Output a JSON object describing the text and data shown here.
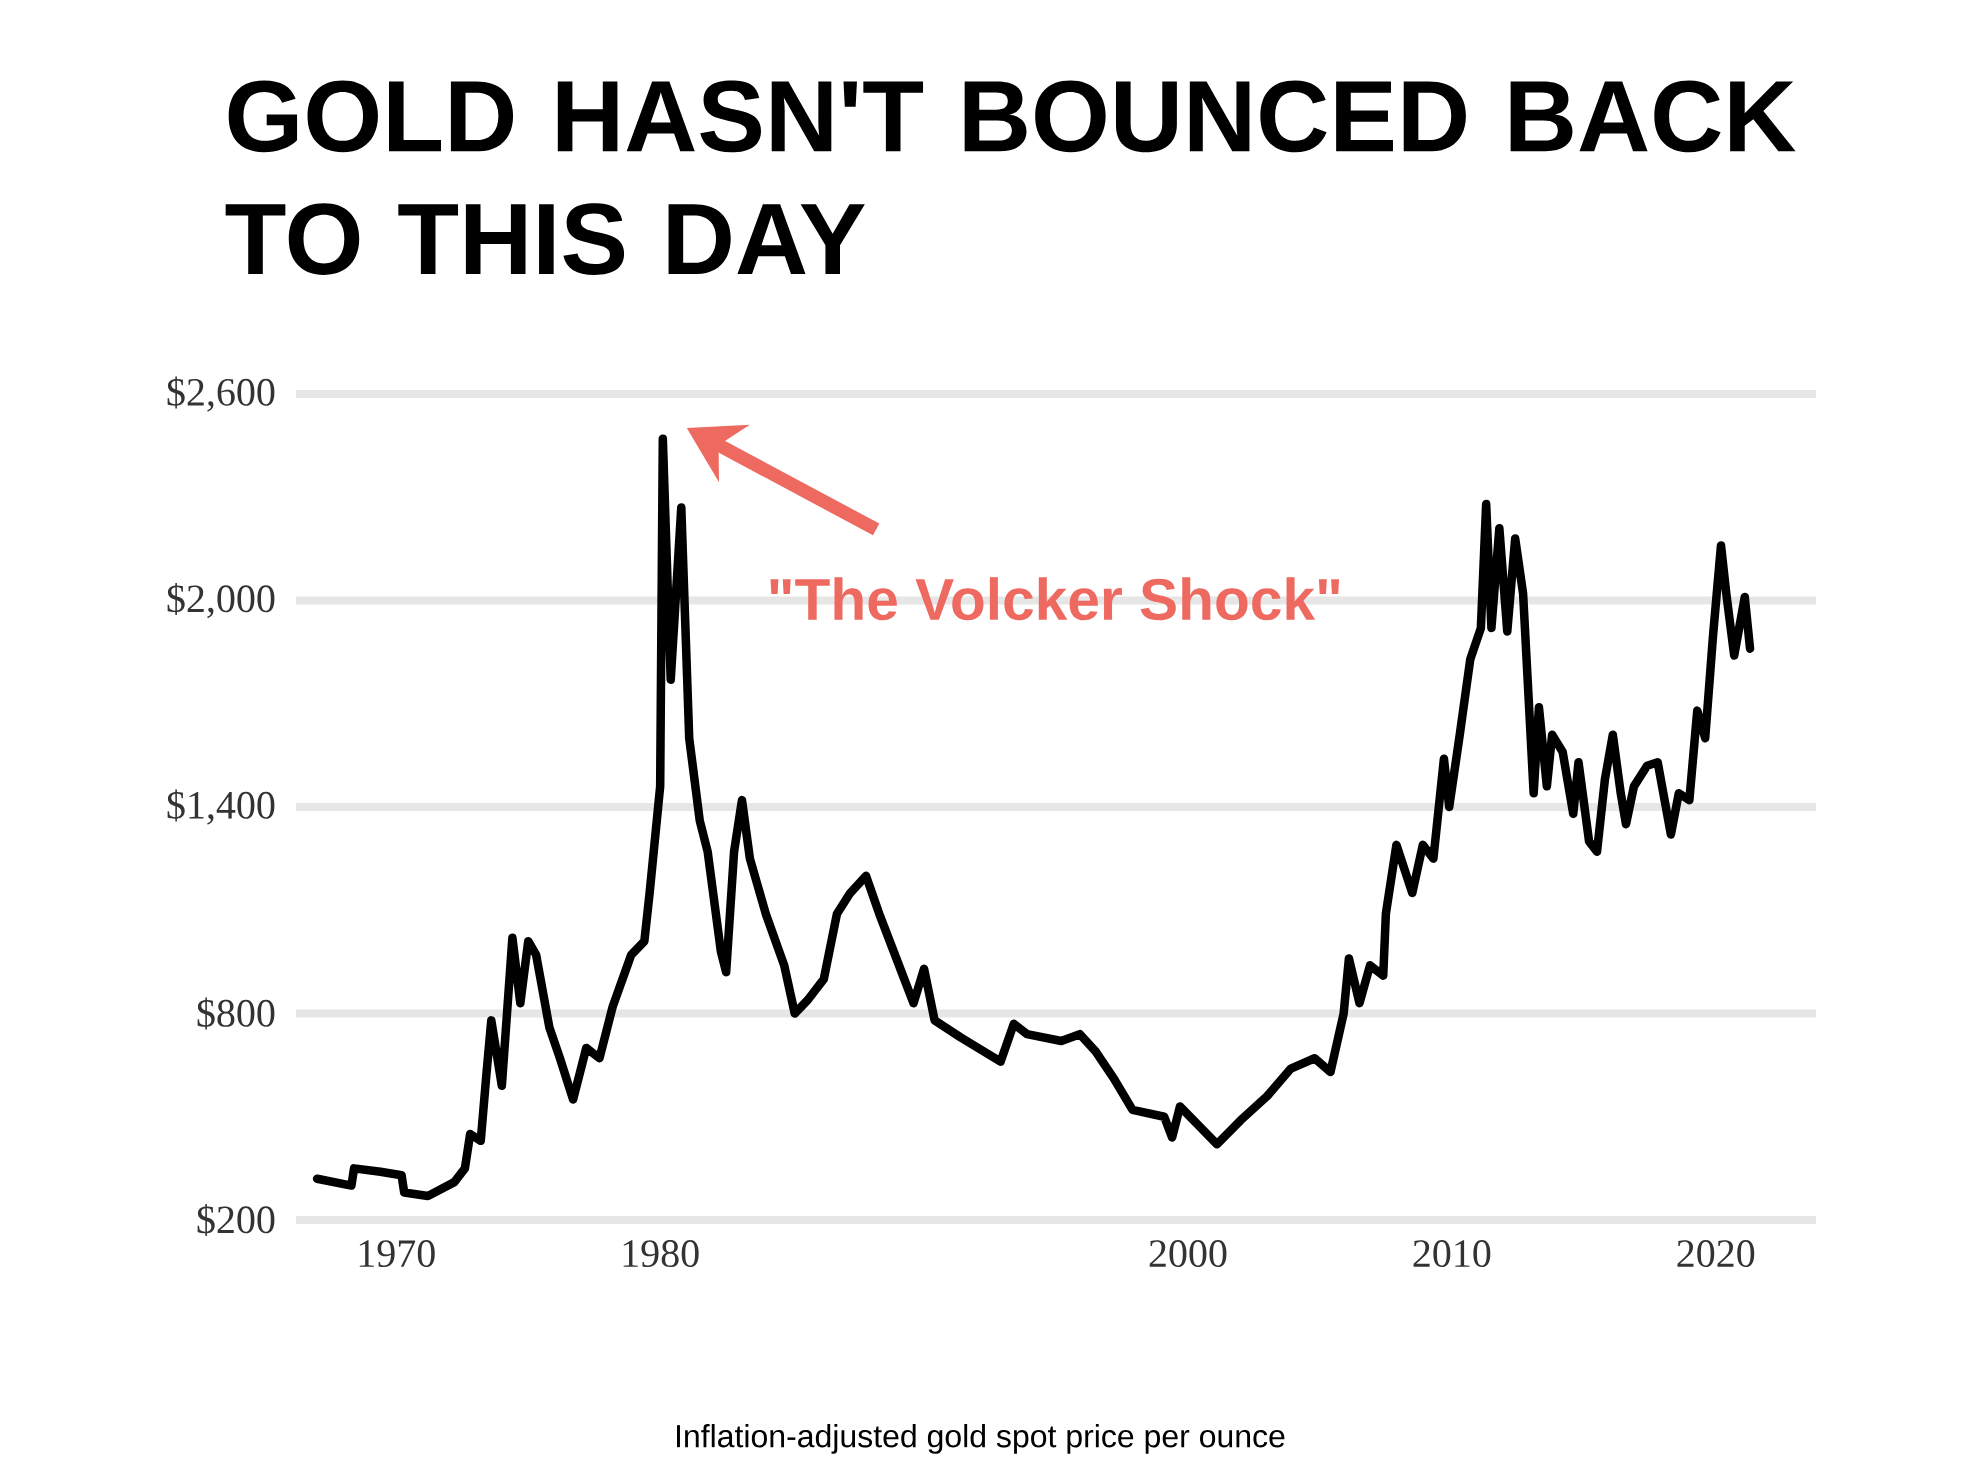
{
  "chart_data": {
    "type": "line",
    "title": "GOLD HASN'T BOUNCED BACK TO THIS DAY",
    "xlabel": "Inflation-adjusted gold spot price per ounce",
    "annotations": [
      {
        "text": "\"The Volcker Shock\"",
        "x": 1980.1,
        "y": 2470
      }
    ],
    "x": [
      1967.0,
      1968.3,
      1968.4,
      1969.4,
      1970.2,
      1970.3,
      1971.2,
      1972.2,
      1972.6,
      1972.8,
      1973.2,
      1973.4,
      1973.6,
      1974.0,
      1974.4,
      1974.7,
      1975.0,
      1975.3,
      1975.8,
      1976.2,
      1976.7,
      1977.2,
      1977.7,
      1978.2,
      1978.9,
      1979.4,
      1979.6,
      1980.0,
      1980.1,
      1980.4,
      1980.8,
      1981.1,
      1981.5,
      1981.8,
      1982.3,
      1982.5,
      1982.8,
      1983.1,
      1983.4,
      1984.0,
      1984.7,
      1985.1,
      1985.6,
      1986.2,
      1986.7,
      1987.2,
      1987.8,
      1988.3,
      1988.8,
      1989.6,
      1990.0,
      1990.4,
      1991.4,
      1992.9,
      1993.4,
      1993.9,
      1995.2,
      1995.9,
      1996.5,
      1997.2,
      1997.9,
      1999.1,
      1999.4,
      1999.7,
      2001.1,
      2002.0,
      2003.0,
      2003.9,
      2004.8,
      2005.4,
      2005.9,
      2006.1,
      2006.5,
      2006.9,
      2007.4,
      2007.5,
      2007.9,
      2008.5,
      2008.9,
      2009.3,
      2009.7,
      2009.9,
      2010.3,
      2010.7,
      2011.1,
      2011.3,
      2011.5,
      2011.8,
      2012.1,
      2012.4,
      2012.7,
      2013.1,
      2013.3,
      2013.6,
      2013.8,
      2014.2,
      2014.6,
      2014.8,
      2015.2,
      2015.5,
      2015.8,
      2016.1,
      2016.4,
      2016.6,
      2016.9,
      2017.4,
      2017.8,
      2018.3,
      2018.6,
      2019.0,
      2019.3,
      2019.6,
      2019.9,
      2020.2,
      2020.4,
      2020.7,
      2021.1,
      2021.3
    ],
    "series": [
      {
        "color": "#000000",
        "values": [
          320,
          300,
          350,
          340,
          330,
          280,
          270,
          310,
          350,
          450,
          430,
          610,
          780,
          590,
          1020,
          830,
          1010,
          970,
          760,
          670,
          550,
          700,
          670,
          820,
          970,
          1010,
          1150,
          1460,
          2470,
          1770,
          2270,
          1600,
          1360,
          1270,
          980,
          920,
          1270,
          1420,
          1250,
          1090,
          940,
          800,
          840,
          900,
          1090,
          1150,
          1200,
          1090,
          990,
          830,
          930,
          780,
          730,
          660,
          770,
          740,
          720,
          740,
          690,
          610,
          520,
          500,
          440,
          530,
          420,
          490,
          560,
          640,
          670,
          630,
          800,
          960,
          830,
          940,
          910,
          1090,
          1290,
          1150,
          1290,
          1250,
          1540,
          1400,
          1610,
          1830,
          1920,
          2280,
          1920,
          2210,
          1910,
          2180,
          2020,
          1440,
          1690,
          1460,
          1610,
          1560,
          1380,
          1530,
          1300,
          1270,
          1480,
          1610,
          1440,
          1350,
          1460,
          1520,
          1530,
          1320,
          1440,
          1420,
          1680,
          1600,
          1900,
          2160,
          2020,
          1840,
          2010,
          1860
        ]
      }
    ],
    "xlim": [
      1966.2,
      2023.8
    ],
    "ylim": [
      200,
      2600
    ],
    "xticks": [
      1970,
      1980,
      2000,
      2010,
      2020
    ],
    "yticks": [
      {
        "value": 200,
        "label": "$200"
      },
      {
        "value": 800,
        "label": "$800"
      },
      {
        "value": 1400,
        "label": "$1,400"
      },
      {
        "value": 2000,
        "label": "$2,000"
      },
      {
        "value": 2600,
        "label": "$2,600"
      }
    ],
    "grid": "y",
    "line_style": "solid"
  }
}
